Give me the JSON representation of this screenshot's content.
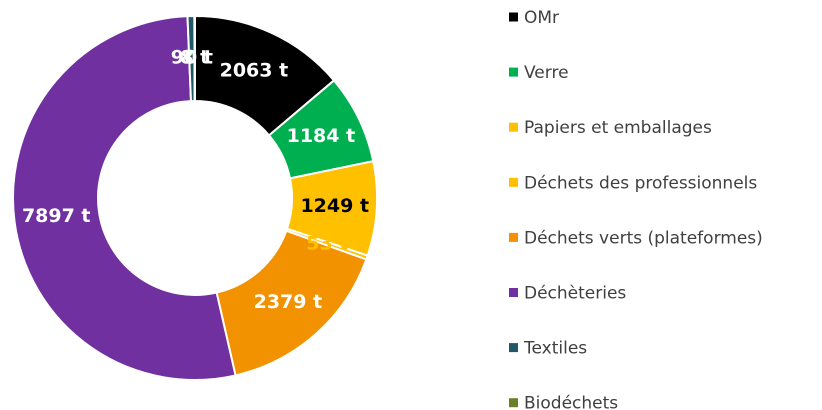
{
  "chart_data": {
    "type": "donut",
    "categories": [
      "OMr",
      "Verre",
      "Papiers et emballages",
      "Déchets des professionnels",
      "Déchets verts (plateformes)",
      "Déchèteries",
      "Textiles",
      "Biodéchets"
    ],
    "values": [
      2063,
      1184,
      1249,
      53,
      2379,
      7897,
      90,
      8
    ],
    "value_labels": [
      "2063 t",
      "1184 t",
      "1249 t",
      "53 t",
      "2379 t",
      "7897 t",
      "90 t",
      "8 t"
    ],
    "colors": [
      "#000000",
      "#00b050",
      "#ffc000",
      "#ffc000",
      "#f39200",
      "#7030a0",
      "#215868",
      "#6a7f2a"
    ],
    "label_colors": [
      "#ffffff",
      "#ffffff",
      "#000000",
      "#ffc000",
      "#ffffff",
      "#ffffff",
      "#ffffff",
      "#ffffff"
    ],
    "legend": "right"
  }
}
